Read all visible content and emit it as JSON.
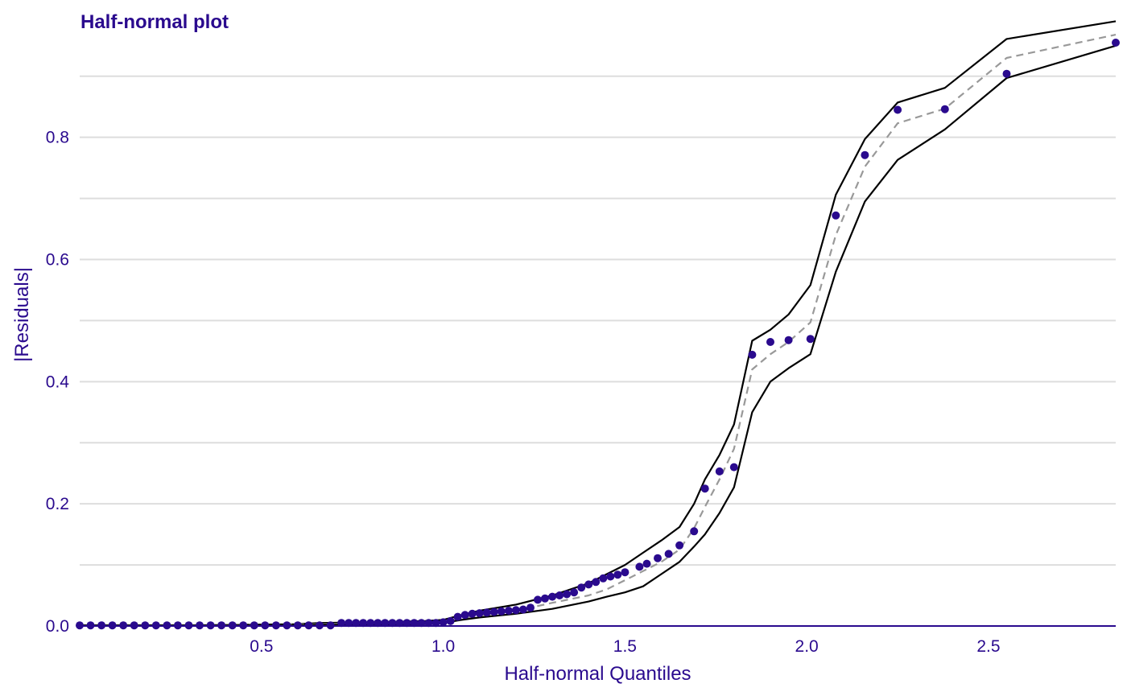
{
  "chart_data": {
    "type": "scatter",
    "title": "Half-normal plot",
    "xlabel": "Half-normal Quantiles",
    "ylabel": "|Residuals|",
    "xlim": [
      0,
      2.85
    ],
    "ylim": [
      0,
      0.98
    ],
    "x_ticks": [
      0.5,
      1.0,
      1.5,
      2.0,
      2.5
    ],
    "x_tick_labels": [
      "0.5",
      "1.0",
      "1.5",
      "2.0",
      "2.5"
    ],
    "y_ticks": [
      0.0,
      0.2,
      0.4,
      0.6,
      0.8
    ],
    "y_tick_labels": [
      "0.0",
      "0.2",
      "0.4",
      "0.6",
      "0.8"
    ],
    "y_minor_gridlines": [
      0.1,
      0.3,
      0.5,
      0.7,
      0.9
    ],
    "grid": "horizontal",
    "colors": {
      "points": "#2a0a8e",
      "text": "#2a0a8e",
      "envelope": "#000000",
      "median": "#999999",
      "grid": "#dddddd"
    },
    "series": [
      {
        "kind": "points",
        "x": [
          0.0,
          0.03,
          0.06,
          0.09,
          0.12,
          0.15,
          0.18,
          0.21,
          0.24,
          0.27,
          0.3,
          0.33,
          0.36,
          0.39,
          0.42,
          0.45,
          0.48,
          0.51,
          0.54,
          0.57,
          0.6,
          0.63,
          0.66,
          0.69,
          0.72,
          0.74,
          0.76,
          0.78,
          0.8,
          0.82,
          0.84,
          0.86,
          0.88,
          0.9,
          0.92,
          0.94,
          0.96,
          0.98,
          1.0,
          1.02,
          1.04,
          1.06,
          1.08,
          1.1,
          1.12,
          1.14,
          1.16,
          1.18,
          1.2,
          1.22,
          1.24,
          1.26,
          1.28,
          1.3,
          1.32,
          1.34,
          1.36,
          1.38,
          1.4,
          1.42,
          1.44,
          1.46,
          1.48,
          1.5,
          1.54,
          1.56,
          1.59,
          1.62,
          1.65,
          1.69,
          1.72,
          1.76,
          1.8,
          1.85,
          1.9,
          1.95,
          2.01,
          2.08,
          2.16,
          2.25,
          2.38,
          2.55,
          2.85
        ],
        "y": [
          0.001,
          0.001,
          0.001,
          0.001,
          0.001,
          0.001,
          0.001,
          0.001,
          0.001,
          0.001,
          0.001,
          0.001,
          0.001,
          0.001,
          0.001,
          0.001,
          0.001,
          0.001,
          0.001,
          0.001,
          0.001,
          0.001,
          0.001,
          0.001,
          0.005,
          0.005,
          0.005,
          0.005,
          0.005,
          0.005,
          0.005,
          0.005,
          0.005,
          0.005,
          0.005,
          0.005,
          0.005,
          0.005,
          0.006,
          0.008,
          0.015,
          0.018,
          0.02,
          0.021,
          0.022,
          0.023,
          0.024,
          0.025,
          0.026,
          0.027,
          0.03,
          0.043,
          0.045,
          0.048,
          0.05,
          0.052,
          0.055,
          0.063,
          0.068,
          0.072,
          0.078,
          0.081,
          0.084,
          0.088,
          0.097,
          0.102,
          0.111,
          0.118,
          0.132,
          0.155,
          0.225,
          0.253,
          0.26,
          0.444,
          0.465,
          0.468,
          0.47,
          0.672,
          0.771,
          0.845,
          0.846,
          0.904,
          0.955
        ]
      },
      {
        "kind": "upper-envelope",
        "x": [
          0.0,
          0.3,
          0.6,
          0.66,
          0.8,
          0.95,
          1.0,
          1.05,
          1.1,
          1.2,
          1.3,
          1.4,
          1.45,
          1.5,
          1.55,
          1.6,
          1.65,
          1.69,
          1.72,
          1.76,
          1.8,
          1.85,
          1.9,
          1.95,
          2.01,
          2.08,
          2.16,
          2.25,
          2.38,
          2.55,
          2.85
        ],
        "y": [
          0.001,
          0.001,
          0.003,
          0.005,
          0.006,
          0.008,
          0.01,
          0.018,
          0.025,
          0.035,
          0.05,
          0.07,
          0.085,
          0.1,
          0.12,
          0.14,
          0.162,
          0.2,
          0.24,
          0.28,
          0.33,
          0.467,
          0.485,
          0.51,
          0.558,
          0.706,
          0.797,
          0.857,
          0.881,
          0.961,
          0.99
        ]
      },
      {
        "kind": "median",
        "x": [
          0.0,
          0.3,
          0.6,
          0.66,
          0.8,
          0.95,
          1.0,
          1.05,
          1.1,
          1.2,
          1.3,
          1.4,
          1.45,
          1.5,
          1.55,
          1.6,
          1.65,
          1.69,
          1.72,
          1.76,
          1.8,
          1.85,
          1.9,
          1.95,
          2.01,
          2.08,
          2.16,
          2.25,
          2.38,
          2.55,
          2.85
        ],
        "y": [
          0.001,
          0.001,
          0.002,
          0.003,
          0.004,
          0.005,
          0.008,
          0.013,
          0.017,
          0.025,
          0.038,
          0.05,
          0.06,
          0.075,
          0.09,
          0.105,
          0.125,
          0.16,
          0.195,
          0.24,
          0.29,
          0.42,
          0.445,
          0.465,
          0.497,
          0.64,
          0.752,
          0.823,
          0.847,
          0.93,
          0.968
        ]
      },
      {
        "kind": "lower-envelope",
        "x": [
          0.0,
          0.3,
          0.6,
          0.66,
          0.8,
          0.95,
          1.0,
          1.05,
          1.1,
          1.2,
          1.3,
          1.4,
          1.45,
          1.5,
          1.55,
          1.6,
          1.65,
          1.69,
          1.72,
          1.76,
          1.8,
          1.85,
          1.9,
          1.95,
          2.01,
          2.08,
          2.16,
          2.25,
          2.38,
          2.55,
          2.85
        ],
        "y": [
          0.001,
          0.001,
          0.001,
          0.002,
          0.002,
          0.003,
          0.005,
          0.01,
          0.014,
          0.02,
          0.028,
          0.04,
          0.048,
          0.055,
          0.065,
          0.085,
          0.105,
          0.13,
          0.15,
          0.185,
          0.227,
          0.35,
          0.4,
          0.422,
          0.445,
          0.58,
          0.695,
          0.763,
          0.813,
          0.897,
          0.95
        ]
      }
    ]
  }
}
